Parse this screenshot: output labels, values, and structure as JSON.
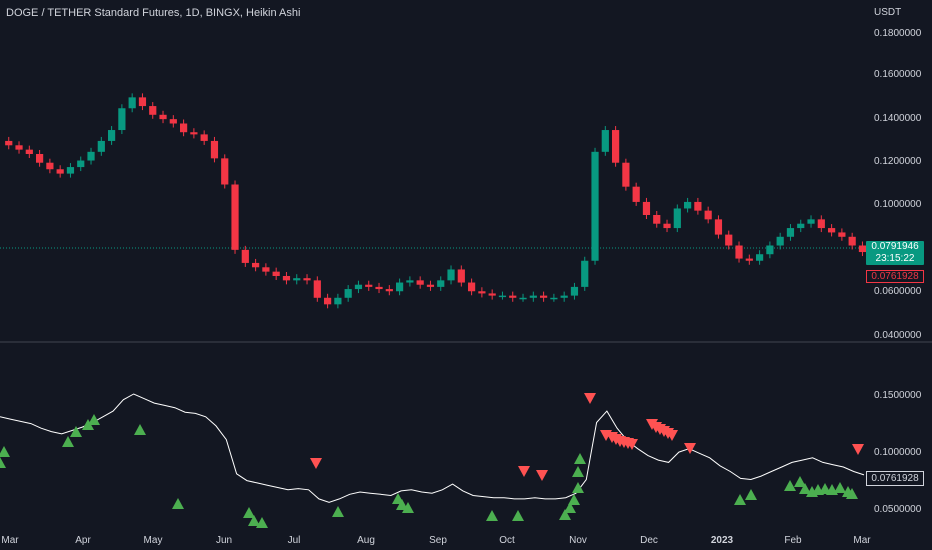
{
  "header": {
    "title": "DOGE / TETHER Standard Futures, 1D, BINGX, Heikin Ashi",
    "currency": "USDT"
  },
  "price_tags": {
    "current": "0.0791946",
    "countdown": "23:15:22",
    "indicator": "0.0761928",
    "indicator_lower": "0.0761928"
  },
  "colors": {
    "background": "#131722",
    "up": "#089981",
    "down": "#f23645",
    "triangle_up": "#4caf50",
    "triangle_down": "#ff5252",
    "line": "#ffffff"
  },
  "main_axis": {
    "labels": [
      "0.1800000",
      "0.1600000",
      "0.1400000",
      "0.1200000",
      "0.1000000",
      "0.0600000",
      "0.0400000"
    ]
  },
  "lower_axis": {
    "labels": [
      "0.1500000",
      "0.1000000",
      "0.0500000"
    ]
  },
  "time_axis": {
    "labels": [
      "Mar",
      "Apr",
      "May",
      "Jun",
      "Jul",
      "Aug",
      "Sep",
      "Oct",
      "Nov",
      "Dec",
      "2023",
      "Feb",
      "Mar"
    ]
  },
  "chart_data": {
    "type": "line",
    "series": [
      {
        "values": [
          0.13,
          0.128,
          0.126,
          0.124,
          0.12,
          0.117,
          0.115,
          0.118,
          0.121,
          0.125,
          0.13,
          0.135,
          0.145,
          0.15,
          0.146,
          0.142,
          0.14,
          0.138,
          0.134,
          0.133,
          0.13,
          0.122,
          0.11,
          0.08,
          0.074,
          0.072,
          0.07,
          0.068,
          0.066,
          0.067,
          0.066,
          0.058,
          0.055,
          0.058,
          0.062,
          0.064,
          0.063,
          0.062,
          0.061,
          0.065,
          0.066,
          0.064,
          0.063,
          0.066,
          0.071,
          0.065,
          0.061,
          0.06,
          0.059,
          0.059,
          0.058,
          0.058,
          0.059,
          0.058,
          0.058,
          0.059,
          0.063,
          0.075,
          0.125,
          0.135,
          0.12,
          0.109,
          0.102,
          0.096,
          0.092,
          0.09,
          0.099,
          0.102,
          0.098,
          0.094,
          0.087,
          0.082,
          0.076,
          0.075,
          0.078,
          0.082,
          0.086,
          0.09,
          0.092,
          0.094,
          0.09,
          0.088,
          0.086,
          0.082,
          0.079
        ]
      }
    ],
    "markers_up_count": 44,
    "markers_down_count": 30
  }
}
